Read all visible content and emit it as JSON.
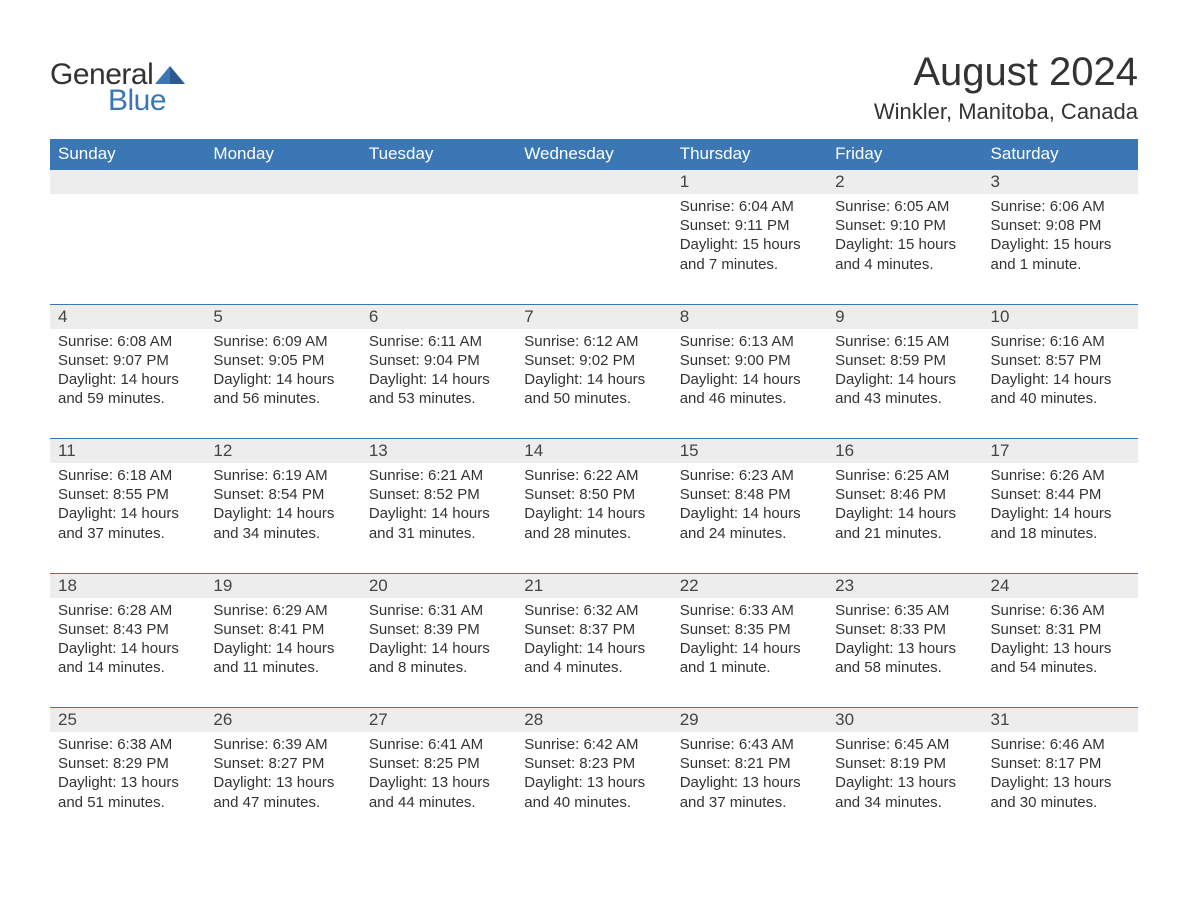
{
  "logo": {
    "text1": "General",
    "text2": "Blue",
    "tri_color": "#3b76b5"
  },
  "title": "August 2024",
  "location": "Winkler, Manitoba, Canada",
  "colors": {
    "header_bg": "#3b76b5",
    "header_text": "#ffffff",
    "daynum_bg": "#ededed",
    "text": "#333333",
    "rule": "#3b76b5",
    "page_bg": "#ffffff"
  },
  "day_names": [
    "Sunday",
    "Monday",
    "Tuesday",
    "Wednesday",
    "Thursday",
    "Friday",
    "Saturday"
  ],
  "weeks": [
    [
      {
        "n": "",
        "sr": "",
        "ss": "",
        "dl": ""
      },
      {
        "n": "",
        "sr": "",
        "ss": "",
        "dl": ""
      },
      {
        "n": "",
        "sr": "",
        "ss": "",
        "dl": ""
      },
      {
        "n": "",
        "sr": "",
        "ss": "",
        "dl": ""
      },
      {
        "n": "1",
        "sr": "Sunrise: 6:04 AM",
        "ss": "Sunset: 9:11 PM",
        "dl": "Daylight: 15 hours and 7 minutes."
      },
      {
        "n": "2",
        "sr": "Sunrise: 6:05 AM",
        "ss": "Sunset: 9:10 PM",
        "dl": "Daylight: 15 hours and 4 minutes."
      },
      {
        "n": "3",
        "sr": "Sunrise: 6:06 AM",
        "ss": "Sunset: 9:08 PM",
        "dl": "Daylight: 15 hours and 1 minute."
      }
    ],
    [
      {
        "n": "4",
        "sr": "Sunrise: 6:08 AM",
        "ss": "Sunset: 9:07 PM",
        "dl": "Daylight: 14 hours and 59 minutes."
      },
      {
        "n": "5",
        "sr": "Sunrise: 6:09 AM",
        "ss": "Sunset: 9:05 PM",
        "dl": "Daylight: 14 hours and 56 minutes."
      },
      {
        "n": "6",
        "sr": "Sunrise: 6:11 AM",
        "ss": "Sunset: 9:04 PM",
        "dl": "Daylight: 14 hours and 53 minutes."
      },
      {
        "n": "7",
        "sr": "Sunrise: 6:12 AM",
        "ss": "Sunset: 9:02 PM",
        "dl": "Daylight: 14 hours and 50 minutes."
      },
      {
        "n": "8",
        "sr": "Sunrise: 6:13 AM",
        "ss": "Sunset: 9:00 PM",
        "dl": "Daylight: 14 hours and 46 minutes."
      },
      {
        "n": "9",
        "sr": "Sunrise: 6:15 AM",
        "ss": "Sunset: 8:59 PM",
        "dl": "Daylight: 14 hours and 43 minutes."
      },
      {
        "n": "10",
        "sr": "Sunrise: 6:16 AM",
        "ss": "Sunset: 8:57 PM",
        "dl": "Daylight: 14 hours and 40 minutes."
      }
    ],
    [
      {
        "n": "11",
        "sr": "Sunrise: 6:18 AM",
        "ss": "Sunset: 8:55 PM",
        "dl": "Daylight: 14 hours and 37 minutes."
      },
      {
        "n": "12",
        "sr": "Sunrise: 6:19 AM",
        "ss": "Sunset: 8:54 PM",
        "dl": "Daylight: 14 hours and 34 minutes."
      },
      {
        "n": "13",
        "sr": "Sunrise: 6:21 AM",
        "ss": "Sunset: 8:52 PM",
        "dl": "Daylight: 14 hours and 31 minutes."
      },
      {
        "n": "14",
        "sr": "Sunrise: 6:22 AM",
        "ss": "Sunset: 8:50 PM",
        "dl": "Daylight: 14 hours and 28 minutes."
      },
      {
        "n": "15",
        "sr": "Sunrise: 6:23 AM",
        "ss": "Sunset: 8:48 PM",
        "dl": "Daylight: 14 hours and 24 minutes."
      },
      {
        "n": "16",
        "sr": "Sunrise: 6:25 AM",
        "ss": "Sunset: 8:46 PM",
        "dl": "Daylight: 14 hours and 21 minutes."
      },
      {
        "n": "17",
        "sr": "Sunrise: 6:26 AM",
        "ss": "Sunset: 8:44 PM",
        "dl": "Daylight: 14 hours and 18 minutes."
      }
    ],
    [
      {
        "n": "18",
        "sr": "Sunrise: 6:28 AM",
        "ss": "Sunset: 8:43 PM",
        "dl": "Daylight: 14 hours and 14 minutes."
      },
      {
        "n": "19",
        "sr": "Sunrise: 6:29 AM",
        "ss": "Sunset: 8:41 PM",
        "dl": "Daylight: 14 hours and 11 minutes."
      },
      {
        "n": "20",
        "sr": "Sunrise: 6:31 AM",
        "ss": "Sunset: 8:39 PM",
        "dl": "Daylight: 14 hours and 8 minutes."
      },
      {
        "n": "21",
        "sr": "Sunrise: 6:32 AM",
        "ss": "Sunset: 8:37 PM",
        "dl": "Daylight: 14 hours and 4 minutes."
      },
      {
        "n": "22",
        "sr": "Sunrise: 6:33 AM",
        "ss": "Sunset: 8:35 PM",
        "dl": "Daylight: 14 hours and 1 minute."
      },
      {
        "n": "23",
        "sr": "Sunrise: 6:35 AM",
        "ss": "Sunset: 8:33 PM",
        "dl": "Daylight: 13 hours and 58 minutes."
      },
      {
        "n": "24",
        "sr": "Sunrise: 6:36 AM",
        "ss": "Sunset: 8:31 PM",
        "dl": "Daylight: 13 hours and 54 minutes."
      }
    ],
    [
      {
        "n": "25",
        "sr": "Sunrise: 6:38 AM",
        "ss": "Sunset: 8:29 PM",
        "dl": "Daylight: 13 hours and 51 minutes."
      },
      {
        "n": "26",
        "sr": "Sunrise: 6:39 AM",
        "ss": "Sunset: 8:27 PM",
        "dl": "Daylight: 13 hours and 47 minutes."
      },
      {
        "n": "27",
        "sr": "Sunrise: 6:41 AM",
        "ss": "Sunset: 8:25 PM",
        "dl": "Daylight: 13 hours and 44 minutes."
      },
      {
        "n": "28",
        "sr": "Sunrise: 6:42 AM",
        "ss": "Sunset: 8:23 PM",
        "dl": "Daylight: 13 hours and 40 minutes."
      },
      {
        "n": "29",
        "sr": "Sunrise: 6:43 AM",
        "ss": "Sunset: 8:21 PM",
        "dl": "Daylight: 13 hours and 37 minutes."
      },
      {
        "n": "30",
        "sr": "Sunrise: 6:45 AM",
        "ss": "Sunset: 8:19 PM",
        "dl": "Daylight: 13 hours and 34 minutes."
      },
      {
        "n": "31",
        "sr": "Sunrise: 6:46 AM",
        "ss": "Sunset: 8:17 PM",
        "dl": "Daylight: 13 hours and 30 minutes."
      }
    ]
  ]
}
